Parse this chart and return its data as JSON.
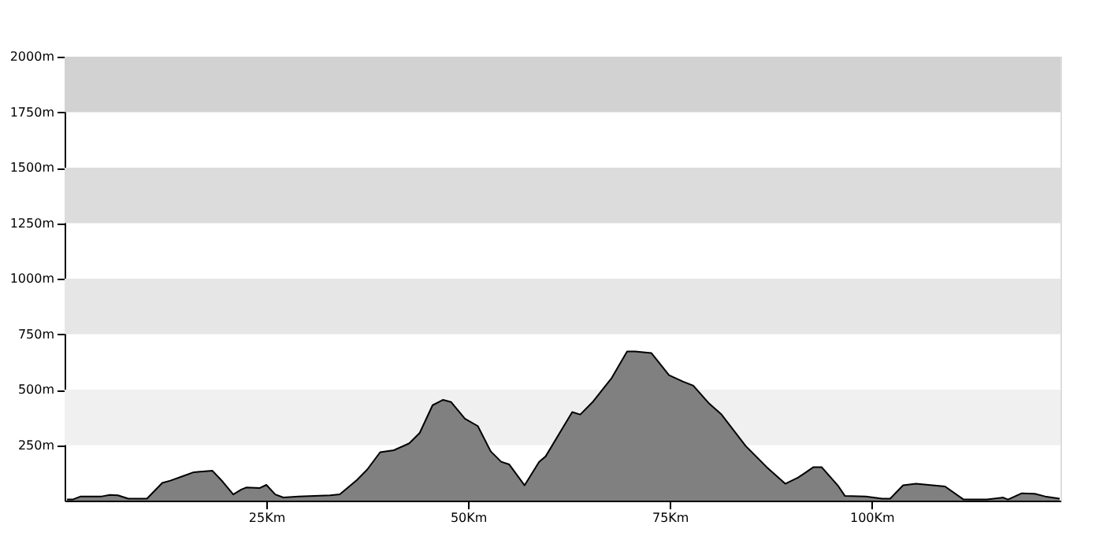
{
  "chart_data": {
    "type": "area",
    "x": [
      0.3,
      1.0,
      2.0,
      4.6,
      5.6,
      6.6,
      7.9,
      10.2,
      12.1,
      13.1,
      14.7,
      16.0,
      18.3,
      19.6,
      20.9,
      21.9,
      22.5,
      24.2,
      25.0,
      26.1,
      27.1,
      29.0,
      32.9,
      34.1,
      36.2,
      37.5,
      39.1,
      40.8,
      42.7,
      44.0,
      45.6,
      46.9,
      47.9,
      49.6,
      51.2,
      52.8,
      54.1,
      55.1,
      57.0,
      58.8,
      59.6,
      62.9,
      63.9,
      65.5,
      67.8,
      69.7,
      70.7,
      72.7,
      74.9,
      76.6,
      77.9,
      79.8,
      81.4,
      84.4,
      87.0,
      89.3,
      90.9,
      92.8,
      93.8,
      95.8,
      96.7,
      99.3,
      101.3,
      102.3,
      103.9,
      105.5,
      109.1,
      111.4,
      114.3,
      116.3,
      116.9,
      118.6,
      120.2,
      121.5,
      123.3
    ],
    "series": [
      {
        "color": "#808080",
        "values": [
          5,
          5,
          19,
          19,
          26,
          24,
          9,
          9,
          80,
          90,
          111,
          128,
          135,
          85,
          28,
          50,
          59,
          57,
          71,
          28,
          14,
          19,
          24,
          28,
          92,
          140,
          218,
          227,
          258,
          305,
          430,
          454,
          444,
          369,
          336,
          222,
          175,
          163,
          69,
          175,
          199,
          399,
          388,
          447,
          553,
          672,
          672,
          665,
          565,
          537,
          518,
          440,
          388,
          246,
          151,
          76,
          104,
          151,
          151,
          69,
          21,
          19,
          9,
          9,
          69,
          76,
          64,
          5,
          5,
          14,
          5,
          33,
          31,
          19,
          9
        ]
      }
    ],
    "xlim": [
      0,
      123.4
    ],
    "xticks": [
      {
        "value": 25,
        "label": "25Km"
      },
      {
        "value": 50,
        "label": "50Km"
      },
      {
        "value": 75,
        "label": "75Km"
      },
      {
        "value": 100,
        "label": "100Km"
      }
    ],
    "ylim": [
      0,
      2000
    ],
    "yticks": [
      {
        "value": 250,
        "label": "250m"
      },
      {
        "value": 500,
        "label": "500m"
      },
      {
        "value": 750,
        "label": "750m"
      },
      {
        "value": 1000,
        "label": "1000m"
      },
      {
        "value": 1250,
        "label": "1250m"
      },
      {
        "value": 1500,
        "label": "1500m"
      },
      {
        "value": 1750,
        "label": "1750m"
      },
      {
        "value": 2000,
        "label": "2000m"
      }
    ],
    "bands": [
      {
        "axis": "y",
        "from": 250,
        "to": 500,
        "color": "#f0f0f0"
      },
      {
        "axis": "y",
        "from": 750,
        "to": 1000,
        "color": "#e6e6e6"
      },
      {
        "axis": "y",
        "from": 1250,
        "to": 1500,
        "color": "#dcdcdc"
      },
      {
        "axis": "y",
        "from": 1750,
        "to": 2000,
        "color": "#d2d2d2"
      }
    ],
    "grid": false
  }
}
